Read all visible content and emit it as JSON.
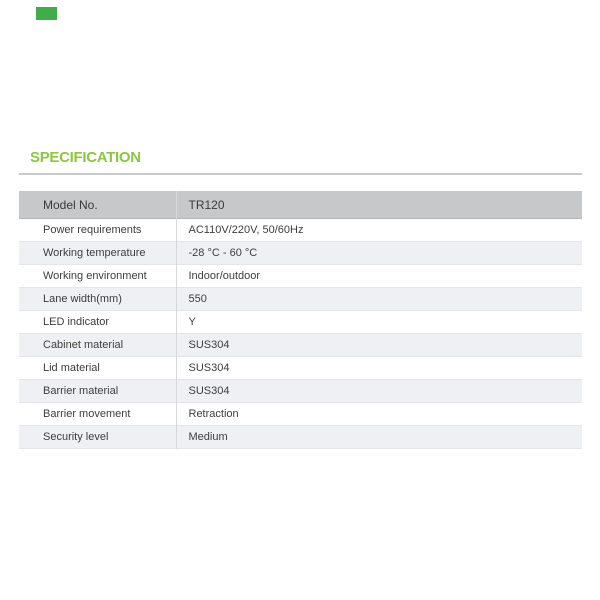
{
  "page": {
    "corner_mark_color": "#3fae49"
  },
  "section": {
    "title": "SPECIFICATION",
    "title_color": "#8dc63f"
  },
  "table": {
    "header": {
      "label": "Model No.",
      "value": "TR120"
    },
    "rows": [
      {
        "label": "Power requirements",
        "value": "AC110V/220V, 50/60Hz"
      },
      {
        "label": "Working temperature",
        "value": "-28 °C - 60 °C"
      },
      {
        "label": "Working environment",
        "value": "Indoor/outdoor"
      },
      {
        "label": "Lane width(mm)",
        "value": "550"
      },
      {
        "label": "LED indicator",
        "value": "Y"
      },
      {
        "label": "Cabinet material",
        "value": "SUS304"
      },
      {
        "label": "Lid material",
        "value": "SUS304"
      },
      {
        "label": "Barrier material",
        "value": "SUS304"
      },
      {
        "label": "Barrier movement",
        "value": "Retraction"
      },
      {
        "label": "Security level",
        "value": "Medium"
      }
    ],
    "colors": {
      "header_bg": "#c7c8ca",
      "stripe_bg": "#eef0f4",
      "text": "#3d3d3d"
    }
  }
}
